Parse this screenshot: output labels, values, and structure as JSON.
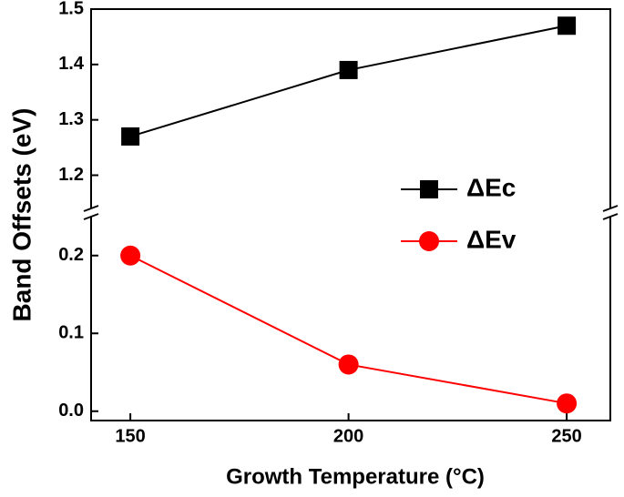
{
  "chart_data": {
    "type": "line",
    "xlabel": "Growth Temperature (°C)",
    "ylabel": "Band Offsets (eV)",
    "x": [
      150,
      200,
      250
    ],
    "xlim": [
      141,
      260
    ],
    "xticks": [
      150,
      200,
      250
    ],
    "y_segments": [
      {
        "ylim": [
          -0.012,
          0.25
        ],
        "yticks": [
          {
            "value": 0,
            "label": "0.0"
          },
          0.1,
          0.2
        ]
      },
      {
        "ylim": [
          1.14,
          1.5
        ],
        "yticks": [
          1.2,
          1.3,
          1.4,
          1.5
        ]
      }
    ],
    "legend": "right",
    "series": [
      {
        "name": "ΔEc",
        "color": "#000000",
        "marker": "square",
        "segment": 1,
        "values": [
          1.27,
          1.39,
          1.47
        ]
      },
      {
        "name": "ΔEv",
        "color": "#ff0000",
        "marker": "circle",
        "segment": 0,
        "values": [
          0.2,
          0.06,
          0.01
        ]
      }
    ]
  }
}
